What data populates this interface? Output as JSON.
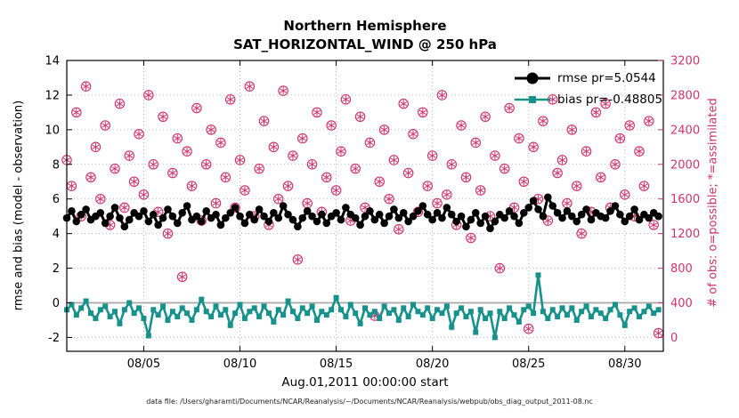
{
  "footer": {
    "datafile": "data file: /Users/gharamti/Documents/NCAR/Reanalysis/~/Documents/NCAR/Reanalysis/webpub/obs_diag_output_2011-08.nc"
  },
  "chart_data": {
    "type": "line",
    "title": "Northern Hemisphere",
    "subtitle": "SAT_HORIZONTAL_WIND @ 250 hPa",
    "xlabel": "Aug.01,2011 00:00:00 start",
    "ylabel_left": "rmse and bias (model - observation)",
    "ylabel_right": "# of obs: o=possible; *=assimilated",
    "xlim": [
      1,
      32
    ],
    "x_ticks": [
      5,
      10,
      15,
      20,
      25,
      30
    ],
    "x_tick_labels": [
      "08/05",
      "08/10",
      "08/15",
      "08/20",
      "08/25",
      "08/30"
    ],
    "ylim_left": [
      -2.8,
      14
    ],
    "yticks_left": [
      -2,
      0,
      2,
      4,
      6,
      8,
      10,
      12,
      14
    ],
    "ylim_right": [
      -160,
      3200
    ],
    "yticks_right": [
      0,
      400,
      800,
      1200,
      1600,
      2000,
      2400,
      2800,
      3200
    ],
    "grid": "on",
    "legend_position": "top-right-inside",
    "legend": [
      {
        "label": "rmse pr=5.0544",
        "marker": "filled-circle"
      },
      {
        "label": "bias pr=-0.48805",
        "marker": "filled-square"
      }
    ],
    "colors": {
      "rmse": "#000000",
      "bias": "#17918b",
      "obs": "#d1336b",
      "right_axis": "#d1336b",
      "zero_line": "#a9a9a9",
      "grid": "#bdbdbd",
      "axis_box": "#000000"
    },
    "series": {
      "x_start": 1.0,
      "x_step": 0.25,
      "rmse": [
        4.9,
        5.3,
        4.7,
        5.1,
        5.4,
        4.8,
        5.0,
        5.2,
        4.6,
        5.0,
        5.5,
        4.9,
        4.4,
        4.8,
        5.2,
        5.0,
        5.3,
        4.7,
        5.1,
        4.5,
        4.9,
        5.4,
        5.0,
        4.6,
        5.2,
        5.6,
        4.8,
        5.0,
        4.7,
        5.3,
        4.9,
        5.1,
        4.5,
        4.9,
        5.2,
        5.5,
        5.0,
        4.6,
        5.1,
        4.8,
        5.4,
        5.0,
        4.7,
        5.2,
        4.9,
        5.6,
        5.1,
        4.8,
        4.4,
        4.9,
        5.3,
        5.0,
        4.7,
        5.1,
        4.6,
        5.0,
        5.2,
        4.8,
        5.5,
        5.1,
        4.9,
        4.5,
        5.0,
        5.3,
        4.8,
        5.1,
        4.6,
        5.0,
        5.4,
        4.9,
        5.2,
        4.7,
        5.0,
        5.3,
        5.6,
        5.1,
        4.8,
        5.2,
        4.9,
        5.5,
        5.1,
        4.7,
        5.0,
        4.4,
        4.8,
        5.2,
        4.6,
        5.0,
        4.3,
        4.7,
        5.1,
        4.9,
        5.3,
        5.0,
        4.6,
        5.2,
        5.5,
        5.9,
        5.4,
        5.0,
        6.1,
        5.6,
        5.2,
        4.9,
        5.3,
        5.0,
        4.7,
        5.1,
        5.4,
        4.8,
        5.2,
        5.0,
        4.9,
        5.3,
        5.6,
        5.1,
        4.7,
        5.0,
        5.4,
        4.8,
        5.1,
        4.9,
        5.2,
        5.0
      ],
      "bias": [
        -0.4,
        -0.1,
        -0.7,
        -0.3,
        0.1,
        -0.6,
        -0.9,
        -0.4,
        -0.2,
        -0.8,
        -0.5,
        -1.2,
        -0.4,
        0.0,
        -0.6,
        -0.3,
        -0.9,
        -1.9,
        -0.4,
        -0.7,
        -0.2,
        -1.0,
        -0.5,
        -0.8,
        -0.3,
        -0.6,
        -1.0,
        -0.4,
        0.2,
        -0.5,
        -0.8,
        -0.2,
        -0.7,
        -0.4,
        -1.3,
        -0.6,
        -0.1,
        -0.9,
        -0.5,
        -0.3,
        -0.8,
        -0.2,
        -0.6,
        -1.1,
        -0.4,
        -0.7,
        0.1,
        -0.5,
        -0.9,
        -0.3,
        -0.6,
        -0.2,
        -1.0,
        -0.5,
        -0.7,
        -0.4,
        0.3,
        -0.4,
        -0.8,
        -0.1,
        -0.6,
        -1.2,
        -0.3,
        -0.7,
        -0.5,
        -0.9,
        -0.2,
        -0.6,
        -0.4,
        -1.0,
        -0.3,
        -0.8,
        -0.1,
        -0.5,
        -0.7,
        -0.3,
        -0.9,
        -0.4,
        -0.6,
        -0.2,
        -1.4,
        -0.6,
        -0.3,
        -0.8,
        -0.5,
        -1.7,
        -0.4,
        -0.9,
        -0.6,
        -2.0,
        -0.5,
        -0.9,
        -0.3,
        -0.7,
        -1.1,
        -0.4,
        -0.2,
        -0.6,
        1.6,
        -0.5,
        -0.9,
        -0.4,
        -0.8,
        -0.3,
        -0.7,
        -0.3,
        -1.0,
        -0.5,
        -0.2,
        -0.8,
        -0.4,
        -0.6,
        -0.9,
        -0.4,
        -0.1,
        -0.7,
        -1.3,
        -0.5,
        -0.3,
        -0.8,
        -0.5,
        -0.2,
        -0.6,
        -0.4
      ],
      "obs_possible": [
        2050,
        1750,
        2600,
        1400,
        2900,
        1850,
        2200,
        1600,
        2450,
        1300,
        1950,
        2700,
        1500,
        2100,
        1800,
        2350,
        1650,
        2800,
        2000,
        1450,
        2550,
        1200,
        1900,
        2300,
        700,
        2150,
        1750,
        2650,
        1350,
        2000,
        2400,
        1550,
        2250,
        1850,
        2750,
        1500,
        2050,
        1700,
        2900,
        1400,
        1950,
        2500,
        1300,
        2200,
        1600,
        2850,
        1750,
        2100,
        900,
        2300,
        1550,
        2000,
        2600,
        1450,
        1850,
        2450,
        1700,
        2150,
        2750,
        1350,
        1950,
        2550,
        1500,
        2250,
        250,
        1800,
        2400,
        1600,
        2050,
        1250,
        2700,
        1900,
        2350,
        1450,
        2600,
        1750,
        2100,
        1550,
        2800,
        1650,
        2000,
        1300,
        2450,
        1850,
        1150,
        2250,
        1700,
        2550,
        1400,
        2100,
        800,
        1950,
        2650,
        1500,
        2300,
        1800,
        100,
        2200,
        1600,
        2500,
        1350,
        2750,
        1900,
        2050,
        1550,
        2400,
        1750,
        1200,
        2150,
        1450,
        2600,
        1850,
        2700,
        1500,
        2000,
        2300,
        1650,
        2450,
        1400,
        2150,
        1750,
        2500,
        1300,
        50
      ],
      "obs_assimilated": [
        2050,
        1750,
        2600,
        1400,
        2900,
        1850,
        2200,
        1600,
        2450,
        1300,
        1950,
        2700,
        1500,
        2100,
        1800,
        2350,
        1650,
        2800,
        2000,
        1450,
        2550,
        1200,
        1900,
        2300,
        700,
        2150,
        1750,
        2650,
        1350,
        2000,
        2400,
        1550,
        2250,
        1850,
        2750,
        1500,
        2050,
        1700,
        2900,
        1400,
        1950,
        2500,
        1300,
        2200,
        1600,
        2850,
        1750,
        2100,
        900,
        2300,
        1550,
        2000,
        2600,
        1450,
        1850,
        2450,
        1700,
        2150,
        2750,
        1350,
        1950,
        2550,
        1500,
        2250,
        250,
        1800,
        2400,
        1600,
        2050,
        1250,
        2700,
        1900,
        2350,
        1450,
        2600,
        1750,
        2100,
        1550,
        2800,
        1650,
        2000,
        1300,
        2450,
        1850,
        1150,
        2250,
        1700,
        2550,
        1400,
        2100,
        800,
        1950,
        2650,
        1500,
        2300,
        1800,
        100,
        2200,
        1600,
        2500,
        1350,
        2750,
        1900,
        2050,
        1550,
        2400,
        1750,
        1200,
        2150,
        1450,
        2600,
        1850,
        2700,
        1500,
        2000,
        2300,
        1650,
        2450,
        1400,
        2150,
        1750,
        2500,
        1300,
        50
      ]
    }
  }
}
